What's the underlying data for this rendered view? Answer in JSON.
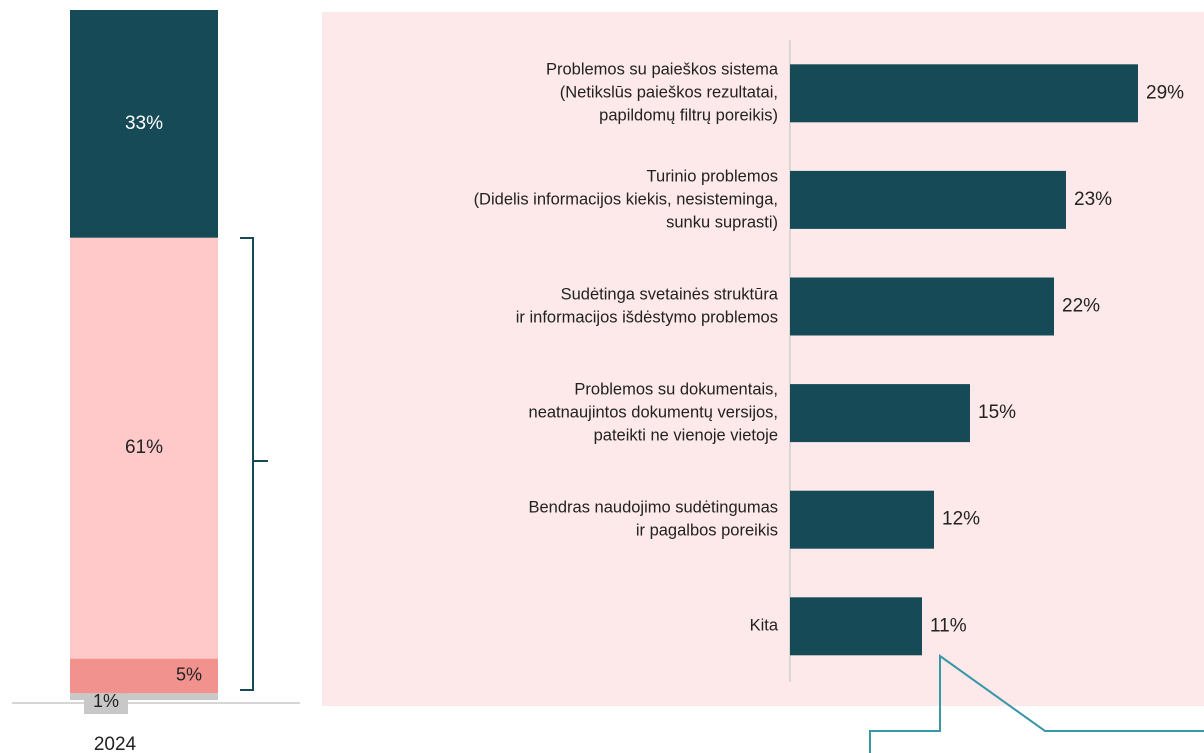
{
  "chart_data": [
    {
      "type": "stacked-bar",
      "categories": [
        "2024"
      ],
      "ylim": [
        0,
        100
      ],
      "series": [
        {
          "color": "#c8c8c8",
          "values": [
            1
          ],
          "value_labels": [
            "1%"
          ]
        },
        {
          "color": "#f2928f",
          "values": [
            5
          ],
          "value_labels": [
            "5%"
          ]
        },
        {
          "color": "#ffc9c9",
          "values": [
            61
          ],
          "value_labels": [
            "61%"
          ]
        },
        {
          "color": "#174a57",
          "values": [
            33
          ],
          "value_labels": [
            "33%"
          ]
        }
      ]
    },
    {
      "type": "hbar",
      "categories": [
        [
          "Problemos su paieškos sistema",
          "(Netikslūs paieškos rezultatai,",
          "papildomų filtrų poreikis)"
        ],
        [
          "Turinio problemos",
          "(Didelis informacijos kiekis, nesisteminga,",
          "sunku suprasti)"
        ],
        [
          "Sudėtinga svetainės struktūra",
          "ir informacijos išdėstymo problemos"
        ],
        [
          "Problemos su dokumentais,",
          "neatnaujintos dokumentų versijos,",
          "pateikti ne vienoje vietoje"
        ],
        [
          "Bendras naudojimo sudėtingumas",
          "ir pagalbos poreikis"
        ],
        [
          "Kita"
        ]
      ],
      "values": [
        29,
        23,
        22,
        15,
        12,
        11
      ],
      "value_labels": [
        "29%",
        "23%",
        "22%",
        "15%",
        "12%",
        "11%"
      ],
      "color": "#174a57",
      "xlim": [
        0,
        30
      ]
    }
  ]
}
